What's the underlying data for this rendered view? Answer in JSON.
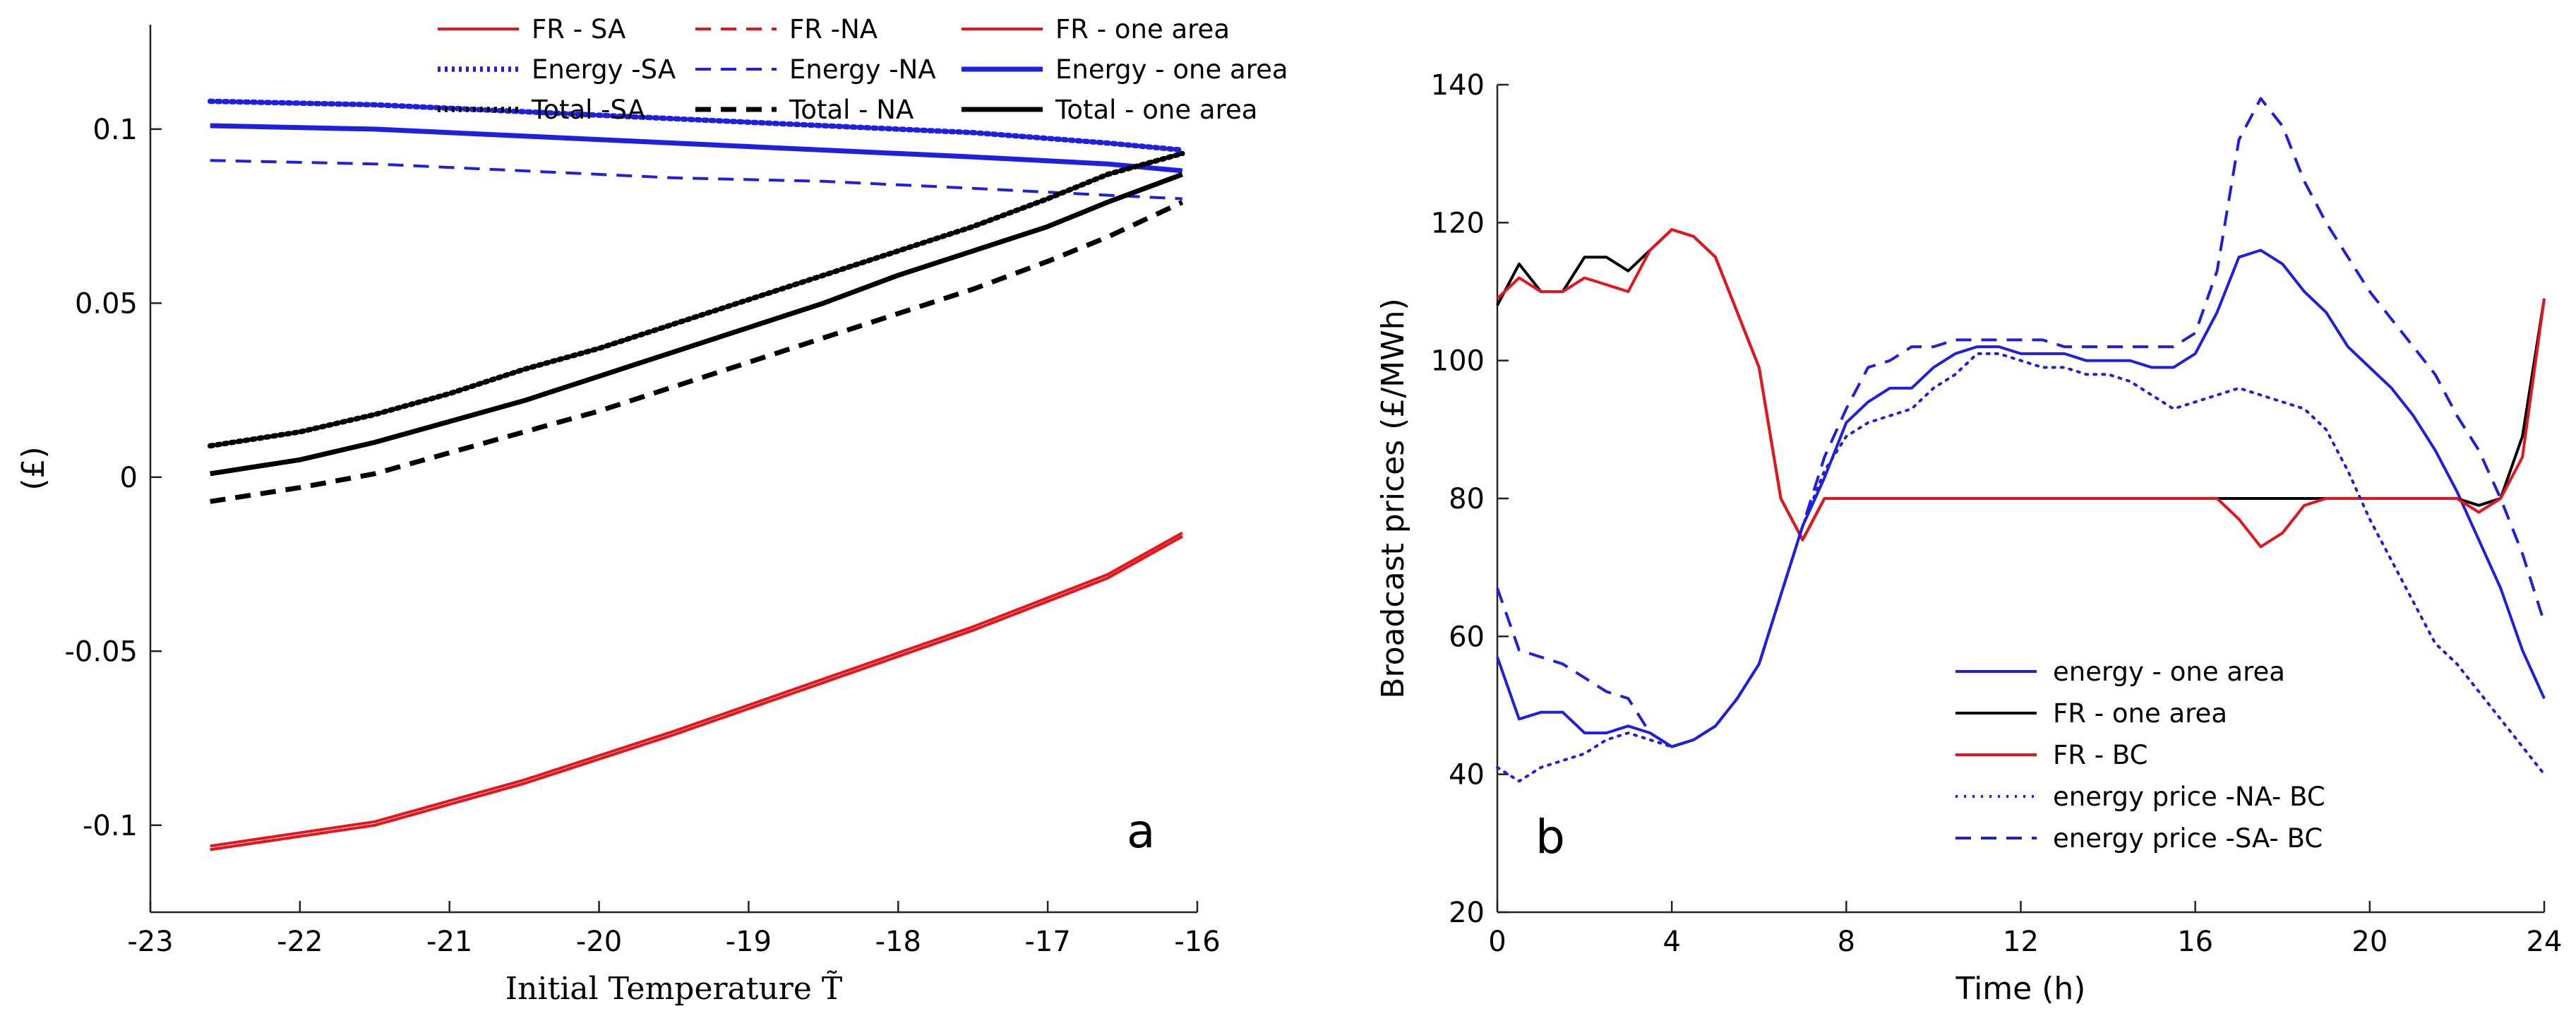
{
  "chart_data": [
    {
      "panel": "a",
      "type": "line",
      "xlabel": "Initial Temperature T̃",
      "ylabel": "(£)",
      "xlim": [
        -23,
        -16
      ],
      "ylim": [
        -0.125,
        0.13
      ],
      "xticks": [
        -23,
        -22,
        -21,
        -20,
        -19,
        -18,
        -17,
        -16
      ],
      "yticks": [
        -0.1,
        -0.05,
        0,
        0.05,
        0.1
      ],
      "xtick_labels": [
        "-23",
        "-22",
        "-21",
        "-20",
        "-19",
        "-18",
        "-17",
        "-16"
      ],
      "ytick_labels": [
        "-0.1",
        "-0.05",
        "0",
        "0.05",
        "0.1"
      ],
      "legend_position": "top",
      "series": [
        {
          "name": "FR - SA",
          "color": "#e8141c",
          "style": "solid-thin",
          "x": [
            -22.6,
            -21.5,
            -20.5,
            -19.5,
            -18.5,
            -17.5,
            -16.6,
            -16.1
          ],
          "y": [
            -0.107,
            -0.1,
            -0.088,
            -0.074,
            -0.059,
            -0.044,
            -0.029,
            -0.017
          ]
        },
        {
          "name": "FR  -NA",
          "color": "#e8141c",
          "style": "dashed-thin",
          "x": [
            -22.6,
            -21.5,
            -20.5,
            -19.5,
            -18.5,
            -17.5,
            -16.6,
            -16.1
          ],
          "y": [
            -0.107,
            -0.1,
            -0.088,
            -0.074,
            -0.059,
            -0.044,
            -0.029,
            -0.017
          ]
        },
        {
          "name": "FR - one area",
          "color": "#e8141c",
          "style": "solid-thin",
          "x": [
            -22.6,
            -21.5,
            -20.5,
            -19.5,
            -18.5,
            -17.5,
            -16.6,
            -16.1
          ],
          "y": [
            -0.106,
            -0.099,
            -0.087,
            -0.073,
            -0.058,
            -0.043,
            -0.028,
            -0.016
          ]
        },
        {
          "name": "Energy -SA",
          "color": "#1f1fe0",
          "style": "dotted-thick",
          "x": [
            -22.6,
            -21.5,
            -20.5,
            -19.5,
            -18.5,
            -17.5,
            -16.6,
            -16.1
          ],
          "y": [
            0.108,
            0.107,
            0.105,
            0.103,
            0.101,
            0.099,
            0.096,
            0.094
          ]
        },
        {
          "name": "Energy -NA",
          "color": "#1f1fe0",
          "style": "dashed-thin",
          "x": [
            -22.6,
            -21.5,
            -20.5,
            -19.5,
            -18.5,
            -17.5,
            -16.6,
            -16.1
          ],
          "y": [
            0.091,
            0.09,
            0.088,
            0.086,
            0.085,
            0.083,
            0.081,
            0.08
          ]
        },
        {
          "name": "Energy - one area",
          "color": "#1f1fe0",
          "style": "solid-thick",
          "x": [
            -22.6,
            -21.5,
            -20.5,
            -19.5,
            -18.5,
            -17.5,
            -16.6,
            -16.1
          ],
          "y": [
            0.101,
            0.1,
            0.098,
            0.096,
            0.094,
            0.092,
            0.09,
            0.088
          ]
        },
        {
          "name": "Total -SA",
          "color": "#000000",
          "style": "dotted-thick",
          "x": [
            -22.6,
            -22,
            -21.5,
            -21,
            -20.5,
            -20,
            -19.5,
            -19,
            -18.5,
            -18,
            -17.5,
            -17,
            -16.6,
            -16.1
          ],
          "y": [
            0.009,
            0.013,
            0.018,
            0.024,
            0.031,
            0.037,
            0.044,
            0.051,
            0.058,
            0.065,
            0.072,
            0.08,
            0.087,
            0.093
          ]
        },
        {
          "name": "Total  - NA",
          "color": "#000000",
          "style": "dashed-thick",
          "x": [
            -22.6,
            -22,
            -21.5,
            -21,
            -20.5,
            -20,
            -19.5,
            -19,
            -18.5,
            -18,
            -17.5,
            -17,
            -16.6,
            -16.1
          ],
          "y": [
            -0.007,
            -0.003,
            0.001,
            0.007,
            0.013,
            0.019,
            0.026,
            0.033,
            0.04,
            0.047,
            0.054,
            0.062,
            0.069,
            0.079
          ]
        },
        {
          "name": "Total - one area",
          "color": "#000000",
          "style": "solid-thick",
          "x": [
            -22.6,
            -22,
            -21.5,
            -21,
            -20.5,
            -20,
            -19.5,
            -19,
            -18.5,
            -18,
            -17.5,
            -17,
            -16.6,
            -16.1
          ],
          "y": [
            0.001,
            0.005,
            0.01,
            0.016,
            0.022,
            0.029,
            0.036,
            0.043,
            0.05,
            0.058,
            0.065,
            0.072,
            0.079,
            0.087
          ]
        }
      ],
      "annotations": [
        "a"
      ]
    },
    {
      "panel": "b",
      "type": "line",
      "xlabel": "Time (h)",
      "ylabel": "Broadcast prices (£/MWh)",
      "xlim": [
        0,
        24
      ],
      "ylim": [
        20,
        140
      ],
      "xticks": [
        0,
        4,
        8,
        12,
        16,
        20,
        24
      ],
      "yticks": [
        20,
        40,
        60,
        80,
        100,
        120,
        140
      ],
      "xtick_labels": [
        "0",
        "4",
        "8",
        "12",
        "16",
        "20",
        "24"
      ],
      "ytick_labels": [
        "20",
        "40",
        "60",
        "80",
        "100",
        "120",
        "140"
      ],
      "legend_position": "bottom-center",
      "series": [
        {
          "name": "energy - one area",
          "color": "#1f1fe0",
          "style": "solid-thin",
          "x": [
            0,
            0.5,
            1,
            1.5,
            2,
            2.5,
            3,
            3.5,
            4,
            4.5,
            5,
            5.5,
            6,
            6.5,
            7,
            7.5,
            8,
            8.5,
            9,
            9.5,
            10,
            10.5,
            11,
            11.5,
            12,
            12.5,
            13,
            13.5,
            14,
            14.5,
            15,
            15.5,
            16,
            16.5,
            17,
            17.5,
            18,
            18.5,
            19,
            19.5,
            20,
            20.5,
            21,
            21.5,
            22,
            22.5,
            23,
            23.5,
            24
          ],
          "y": [
            57,
            48,
            49,
            49,
            46,
            46,
            47,
            46,
            44,
            45,
            47,
            51,
            56,
            66,
            76,
            83,
            91,
            94,
            96,
            96,
            99,
            101,
            102,
            102,
            101,
            101,
            101,
            100,
            100,
            100,
            99,
            99,
            101,
            107,
            115,
            116,
            114,
            110,
            107,
            102,
            99,
            96,
            92,
            87,
            81,
            74,
            67,
            58,
            51
          ]
        },
        {
          "name": "FR - one area",
          "color": "#000000",
          "style": "solid-thin",
          "x": [
            0,
            0.5,
            1,
            1.5,
            2,
            2.5,
            3,
            3.5,
            4,
            4.5,
            5,
            5.5,
            6,
            6.5,
            7,
            7.5,
            8,
            10,
            12,
            14,
            16,
            18,
            20,
            21,
            22,
            22.5,
            23,
            23.5,
            24
          ],
          "y": [
            108,
            114,
            110,
            110,
            115,
            115,
            113,
            116,
            119,
            118,
            115,
            107,
            99,
            80,
            74,
            80,
            80,
            80,
            80,
            80,
            80,
            80,
            80,
            80,
            80,
            79,
            80,
            89,
            109
          ]
        },
        {
          "name": "FR - BC",
          "color": "#e8141c",
          "style": "solid-thin",
          "x": [
            0,
            0.5,
            1,
            1.5,
            2,
            2.5,
            3,
            3.5,
            4,
            4.5,
            5,
            5.5,
            6,
            6.5,
            7,
            7.5,
            8,
            10,
            12,
            14,
            16,
            16.5,
            17,
            17.5,
            18,
            18.5,
            19,
            20,
            21,
            22,
            22.5,
            23,
            23.5,
            24
          ],
          "y": [
            109,
            112,
            110,
            110,
            112,
            111,
            110,
            116,
            119,
            118,
            115,
            107,
            99,
            80,
            74,
            80,
            80,
            80,
            80,
            80,
            80,
            80,
            77,
            73,
            75,
            79,
            80,
            80,
            80,
            80,
            78,
            80,
            86,
            109
          ]
        },
        {
          "name": "energy price -NA- BC",
          "color": "#1f1fe0",
          "style": "dotted-thin",
          "x": [
            0,
            0.5,
            1,
            1.5,
            2,
            2.5,
            3,
            3.5,
            4,
            4.5,
            5,
            5.5,
            6,
            6.5,
            7,
            7.5,
            8,
            8.5,
            9,
            9.5,
            10,
            10.5,
            11,
            11.5,
            12,
            12.5,
            13,
            13.5,
            14,
            14.5,
            15,
            15.5,
            16,
            16.5,
            17,
            17.5,
            18,
            18.5,
            19,
            19.5,
            20,
            20.5,
            21,
            21.5,
            22,
            22.5,
            23,
            23.5,
            24
          ],
          "y": [
            41,
            39,
            41,
            42,
            43,
            45,
            46,
            45,
            44,
            45,
            47,
            51,
            56,
            66,
            76,
            84,
            89,
            91,
            92,
            93,
            96,
            98,
            101,
            101,
            100,
            99,
            99,
            98,
            98,
            97,
            95,
            93,
            94,
            95,
            96,
            95,
            94,
            93,
            90,
            84,
            77,
            71,
            65,
            59,
            56,
            52,
            48,
            44,
            40
          ]
        },
        {
          "name": "energy price -SA- BC",
          "color": "#1f1fe0",
          "style": "dashed-thin",
          "x": [
            0,
            0.5,
            1,
            1.5,
            2,
            2.5,
            3,
            3.5,
            4,
            4.5,
            5,
            5.5,
            6,
            6.5,
            7,
            7.5,
            8,
            8.5,
            9,
            9.5,
            10,
            10.5,
            11,
            11.5,
            12,
            12.5,
            13,
            13.5,
            14,
            14.5,
            15,
            15.5,
            16,
            16.5,
            17,
            17.5,
            18,
            18.5,
            19,
            19.5,
            20,
            20.5,
            21,
            21.5,
            22,
            22.5,
            23,
            23.5,
            24
          ],
          "y": [
            67,
            58,
            57,
            56,
            54,
            52,
            51,
            46,
            44,
            45,
            47,
            51,
            56,
            66,
            76,
            86,
            93,
            99,
            100,
            102,
            102,
            103,
            103,
            103,
            103,
            103,
            102,
            102,
            102,
            102,
            102,
            102,
            104,
            113,
            132,
            138,
            134,
            126,
            120,
            115,
            110,
            106,
            102,
            98,
            92,
            87,
            80,
            72,
            62
          ]
        }
      ],
      "annotations": [
        "b"
      ]
    }
  ]
}
